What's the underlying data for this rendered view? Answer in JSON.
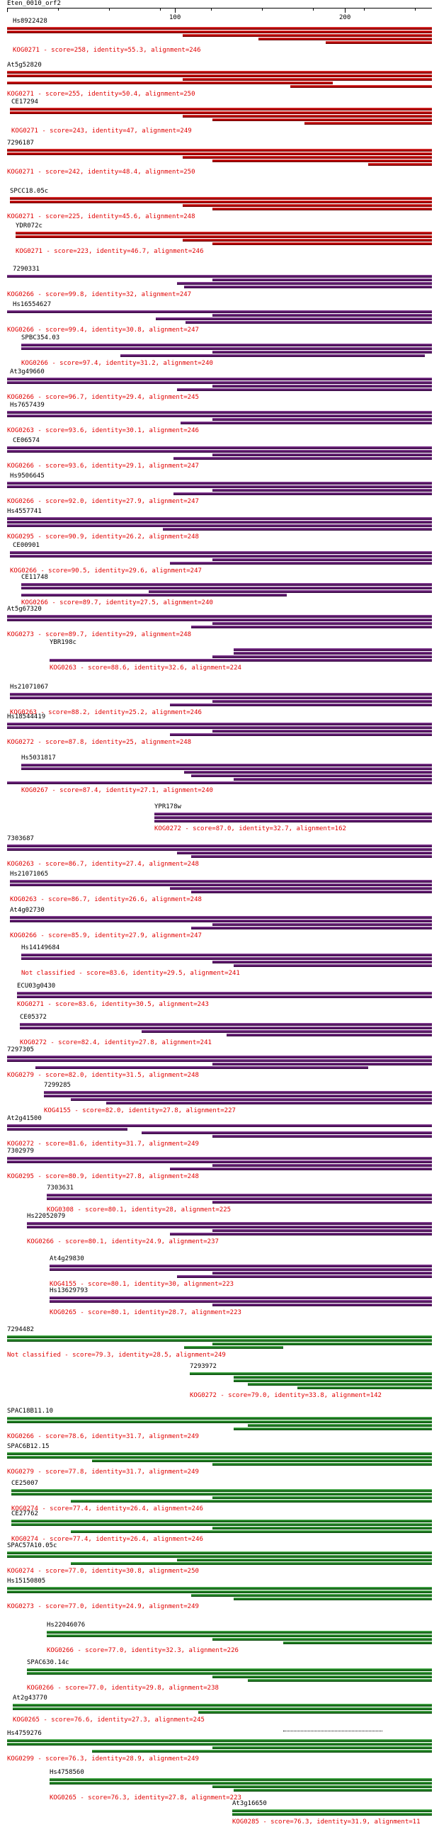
{
  "query_title": "Eten_0010_orf2",
  "ruler": {
    "ticks": [
      "100",
      "200"
    ]
  },
  "colors": {
    "high": "#b40000",
    "mid": "#5d1a6b",
    "low": "#1f7a22",
    "label": "#e00000"
  },
  "hits": [
    {
      "name": "Hs8922428",
      "kog": "KOG0271 - score=258, identity=55.3, alignment=246",
      "group": "high"
    },
    {
      "name": "At5g52820",
      "kog": "KOG0271 - score=255, identity=50.4, alignment=250",
      "group": "high"
    },
    {
      "name": "CE17294",
      "kog": "KOG0271 - score=243, identity=47, alignment=249",
      "group": "high"
    },
    {
      "name": "7296187",
      "kog": "KOG0271 - score=242, identity=48.4, alignment=250",
      "group": "high"
    },
    {
      "name": "SPCC18.05c",
      "kog": "KOG0271 - score=225, identity=45.6, alignment=248",
      "group": "high"
    },
    {
      "name": "YDR072c",
      "kog": "KOG0271 - score=223, identity=46.7, alignment=246",
      "group": "high"
    },
    {
      "name": "7290331",
      "kog": "KOG0266 - score=99.8, identity=32, alignment=247",
      "group": "mid"
    },
    {
      "name": "Hs16554627",
      "kog": "KOG0266 - score=99.4, identity=30.8, alignment=247",
      "group": "mid"
    },
    {
      "name": "SPBC354.03",
      "kog": "KOG0266 - score=97.4, identity=31.2, alignment=240",
      "group": "mid"
    },
    {
      "name": "At3g49660",
      "kog": "KOG0266 - score=96.7, identity=29.4, alignment=245",
      "group": "mid"
    },
    {
      "name": "Hs7657439",
      "kog": "KOG0263 - score=93.6, identity=30.1, alignment=246",
      "group": "mid"
    },
    {
      "name": "CE06574",
      "kog": "KOG0266 - score=93.6, identity=29.1, alignment=247",
      "group": "mid"
    },
    {
      "name": "Hs9506645",
      "kog": "KOG0266 - score=92.0, identity=27.9, alignment=247",
      "group": "mid"
    },
    {
      "name": "Hs4557741",
      "kog": "KOG0295 - score=90.9, identity=26.2, alignment=248",
      "group": "mid"
    },
    {
      "name": "CE00901",
      "kog": "KOG0266 - score=90.5, identity=29.6, alignment=247",
      "group": "mid"
    },
    {
      "name": "CE11748",
      "kog": "KOG0266 - score=89.7, identity=27.5, alignment=240",
      "group": "mid"
    },
    {
      "name": "At5g67320",
      "kog": "KOG0273 - score=89.7, identity=29, alignment=248",
      "group": "mid"
    },
    {
      "name": "YBR198c",
      "kog": "KOG0263 - score=88.6, identity=32.6, alignment=224",
      "group": "mid"
    },
    {
      "name": "Hs21071067",
      "kog": "KOG0263 - score=88.2, identity=25.2, alignment=246",
      "group": "mid"
    },
    {
      "name": "Hs18544419",
      "kog": "KOG0272 - score=87.8, identity=25, alignment=248",
      "group": "mid"
    },
    {
      "name": "Hs5031817",
      "kog": "KOG0267 - score=87.4, identity=27.1, alignment=240",
      "group": "mid"
    },
    {
      "name": "YPR178w",
      "kog": "KOG0272 - score=87.0, identity=32.7, alignment=162",
      "group": "mid"
    },
    {
      "name": "7303687",
      "kog": "KOG0263 - score=86.7, identity=27.4, alignment=248",
      "group": "mid"
    },
    {
      "name": "Hs21071065",
      "kog": "KOG0263 - score=86.7, identity=26.6, alignment=248",
      "group": "mid"
    },
    {
      "name": "At4g02730",
      "kog": "KOG0266 - score=85.9, identity=27.9, alignment=247",
      "group": "mid"
    },
    {
      "name": "Hs14149684",
      "kog": "Not classified - score=83.6, identity=29.5, alignment=241",
      "group": "mid"
    },
    {
      "name": "ECU03g0430",
      "kog": "KOG0271 - score=83.6, identity=30.5, alignment=243",
      "group": "mid"
    },
    {
      "name": "CE05372",
      "kog": "KOG0272 - score=82.4, identity=27.8, alignment=241",
      "group": "mid"
    },
    {
      "name": "7297305",
      "kog": "KOG0279 - score=82.0, identity=31.5, alignment=248",
      "group": "mid"
    },
    {
      "name": "7299285",
      "kog": "KOG4155 - score=82.0, identity=27.8, alignment=227",
      "group": "mid"
    },
    {
      "name": "At2g41500",
      "kog": "KOG0272 - score=81.6, identity=31.7, alignment=249",
      "group": "mid"
    },
    {
      "name": "7302979",
      "kog": "KOG0295 - score=80.9, identity=27.8, alignment=248",
      "group": "mid"
    },
    {
      "name": "7303631",
      "kog": "KOG0308 - score=80.1, identity=28, alignment=225",
      "group": "mid"
    },
    {
      "name": "Hs22052079",
      "kog": "KOG0266 - score=80.1, identity=24.9, alignment=237",
      "group": "mid"
    },
    {
      "name": "At4g29830",
      "kog": "KOG4155 - score=80.1, identity=30, alignment=223",
      "group": "mid"
    },
    {
      "name": "Hs13629793",
      "kog": "KOG0265 - score=80.1, identity=28.7, alignment=223",
      "group": "mid"
    },
    {
      "name": "7294482",
      "kog": "Not classified - score=79.3, identity=28.5, alignment=249",
      "group": "low"
    },
    {
      "name": "7293972",
      "kog": "KOG0272 - score=79.0, identity=33.8, alignment=142",
      "group": "low"
    },
    {
      "name": "SPAC18B11.10",
      "kog": "KOG0266 - score=78.6, identity=31.7, alignment=249",
      "group": "low"
    },
    {
      "name": "SPAC6B12.15",
      "kog": "KOG0279 - score=77.8, identity=31.7, alignment=249",
      "group": "low"
    },
    {
      "name": "CE25007",
      "kog": "KOG0274 - score=77.4, identity=26.4, alignment=246",
      "group": "low"
    },
    {
      "name": "CE27762",
      "kog": "KOG0274 - score=77.4, identity=26.4, alignment=246",
      "group": "low"
    },
    {
      "name": "SPAC57A10.05c",
      "kog": "KOG0274 - score=77.0, identity=30.8, alignment=250",
      "group": "low"
    },
    {
      "name": "Hs15150805",
      "kog": "KOG0273 - score=77.0, identity=24.9, alignment=249",
      "group": "low"
    },
    {
      "name": "Hs22046076",
      "kog": "KOG0266 - score=77.0, identity=32.3, alignment=226",
      "group": "low"
    },
    {
      "name": "SPAC630.14c",
      "kog": "KOG0266 - score=77.0, identity=29.8, alignment=238",
      "group": "low"
    },
    {
      "name": "At2g43770",
      "kog": "KOG0265 - score=76.6, identity=27.3, alignment=245",
      "group": "low"
    },
    {
      "name": "Hs4759276",
      "kog": "KOG0299 - score=76.3, identity=28.9, alignment=249",
      "group": "low"
    },
    {
      "name": "Hs4758560",
      "kog": "KOG0265 - score=76.3, identity=27.8, alignment=223",
      "group": "low"
    },
    {
      "name": "At3g16650",
      "kog": "KOG0285 - score=76.3, identity=31.9, alignment=11",
      "group": "low"
    }
  ]
}
